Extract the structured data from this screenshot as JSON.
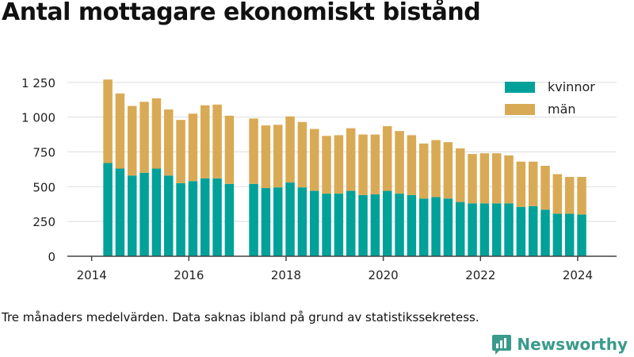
{
  "title": "Antal mottagare ekonomiskt bistånd",
  "footnote": "Tre månaders medelvärden. Data saknas ibland på grund av statistikssekretess.",
  "brand": {
    "name": "Newsworthy",
    "icon": "bar-chart-speech-bubble-icon",
    "color": "#3a9a8c"
  },
  "chart_data": {
    "type": "bar",
    "stacked": true,
    "xlabel": "",
    "ylabel": "",
    "ylim": [
      0,
      1300
    ],
    "xlim": [
      2013.5,
      2024.8
    ],
    "y_ticks": [
      0,
      250,
      500,
      750,
      1000,
      1250
    ],
    "y_tick_labels": [
      "0",
      "250",
      "500",
      "750",
      "1 000",
      "1 250"
    ],
    "x_ticks": [
      2014,
      2016,
      2018,
      2020,
      2022,
      2024
    ],
    "x_tick_labels": [
      "2014",
      "2016",
      "2018",
      "2020",
      "2022",
      "2024"
    ],
    "grid": "horizontal",
    "legend_position": "top-right",
    "x": [
      2014.333,
      2014.583,
      2014.833,
      2015.083,
      2015.333,
      2015.583,
      2015.833,
      2016.083,
      2016.333,
      2016.583,
      2016.833,
      2017.083,
      2017.333,
      2017.583,
      2017.833,
      2018.083,
      2018.333,
      2018.583,
      2018.833,
      2019.083,
      2019.333,
      2019.583,
      2019.833,
      2020.083,
      2020.333,
      2020.583,
      2020.833,
      2021.083,
      2021.333,
      2021.583,
      2021.833,
      2022.083,
      2022.333,
      2022.583,
      2022.833,
      2023.083,
      2023.333,
      2023.583,
      2023.833,
      2024.083
    ],
    "series": [
      {
        "name": "kvinnor",
        "color": "#00a199",
        "values": [
          670,
          630,
          580,
          600,
          630,
          580,
          525,
          540,
          560,
          560,
          520,
          null,
          520,
          490,
          495,
          530,
          495,
          470,
          450,
          450,
          470,
          440,
          445,
          470,
          450,
          440,
          415,
          425,
          415,
          390,
          380,
          380,
          380,
          380,
          355,
          360,
          335,
          305,
          305,
          300
        ]
      },
      {
        "name": "män",
        "color": "#d9aa55",
        "values": [
          600,
          540,
          500,
          510,
          505,
          475,
          455,
          485,
          525,
          530,
          490,
          null,
          470,
          450,
          450,
          475,
          470,
          445,
          415,
          420,
          450,
          435,
          430,
          465,
          450,
          430,
          395,
          410,
          405,
          385,
          355,
          360,
          360,
          345,
          325,
          320,
          315,
          285,
          265,
          270
        ]
      }
    ]
  }
}
